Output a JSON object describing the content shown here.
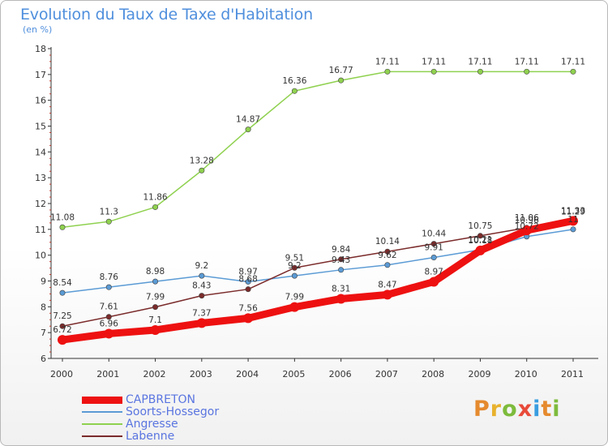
{
  "title": "Evolution du Taux de Taxe d'Habitation",
  "unit": "(en %)",
  "logo": {
    "letters": [
      "P",
      "r",
      "o",
      "x",
      "i",
      "t",
      "i"
    ],
    "colors": [
      "#e58a2e",
      "#e8b22e",
      "#7dbb3c",
      "#e84a3a",
      "#3a9de0",
      "#e58a2e",
      "#7dbb3c"
    ]
  },
  "colors": {
    "title": "#4f8fdd",
    "axis": "#333333",
    "grid_tick": "#c0392b"
  },
  "chart_data": {
    "type": "line",
    "title": "Evolution du Taux de Taxe d'Habitation",
    "ylabel": "(en %)",
    "xlabel": "",
    "x": [
      "2000",
      "2001",
      "2002",
      "2003",
      "2004",
      "2005",
      "2006",
      "2007",
      "2008",
      "2009",
      "2010",
      "2011"
    ],
    "ylim": [
      6,
      18
    ],
    "yticks": [
      "6",
      "7",
      "8",
      "9",
      "10",
      "11",
      "12",
      "13",
      "14",
      "15",
      "16",
      "17",
      "18"
    ],
    "legend_position": "bottom-left",
    "series": [
      {
        "name": "CAPBRETON",
        "color": "#ee1111",
        "values": [
          6.72,
          6.96,
          7.1,
          7.37,
          7.56,
          7.99,
          8.31,
          8.47,
          8.97,
          10.18,
          10.96,
          11.33
        ],
        "labels": [
          "6.72",
          "6.96",
          "7.1",
          "7.37",
          "7.56",
          "7.99",
          "8.31",
          "8.47",
          "8.97",
          "10.18",
          "10.96",
          "11.33"
        ]
      },
      {
        "name": "Soorts-Hossegor",
        "color": "#5b9bd5",
        "values": [
          8.54,
          8.76,
          8.98,
          9.2,
          8.97,
          9.2,
          9.43,
          9.62,
          9.91,
          10.21,
          10.72,
          11.0
        ],
        "labels": [
          "8.54",
          "8.76",
          "8.98",
          "9.2",
          "8.97",
          "9.2",
          "9.43",
          "9.62",
          "9.91",
          "10.21",
          "10.72",
          "11"
        ]
      },
      {
        "name": "Angresse",
        "color": "#8fd14f",
        "values": [
          11.08,
          11.3,
          11.86,
          13.28,
          14.87,
          16.36,
          16.77,
          17.11,
          17.11,
          17.11,
          17.11,
          17.11
        ],
        "labels": [
          "11.08",
          "11.3",
          "11.86",
          "13.28",
          "14.87",
          "16.36",
          "16.77",
          "17.11",
          "17.11",
          "17.11",
          "17.11",
          "17.11"
        ]
      },
      {
        "name": "Labenne",
        "color": "#7b2b2b",
        "values": [
          7.25,
          7.61,
          7.99,
          8.43,
          8.68,
          9.51,
          9.84,
          10.14,
          10.44,
          10.75,
          11.06,
          11.29
        ],
        "labels": [
          "7.25",
          "7.61",
          "7.99",
          "8.43",
          "8.68",
          "9.51",
          "9.84",
          "10.14",
          "10.44",
          "10.75",
          "11.06",
          "11.29"
        ]
      }
    ]
  }
}
